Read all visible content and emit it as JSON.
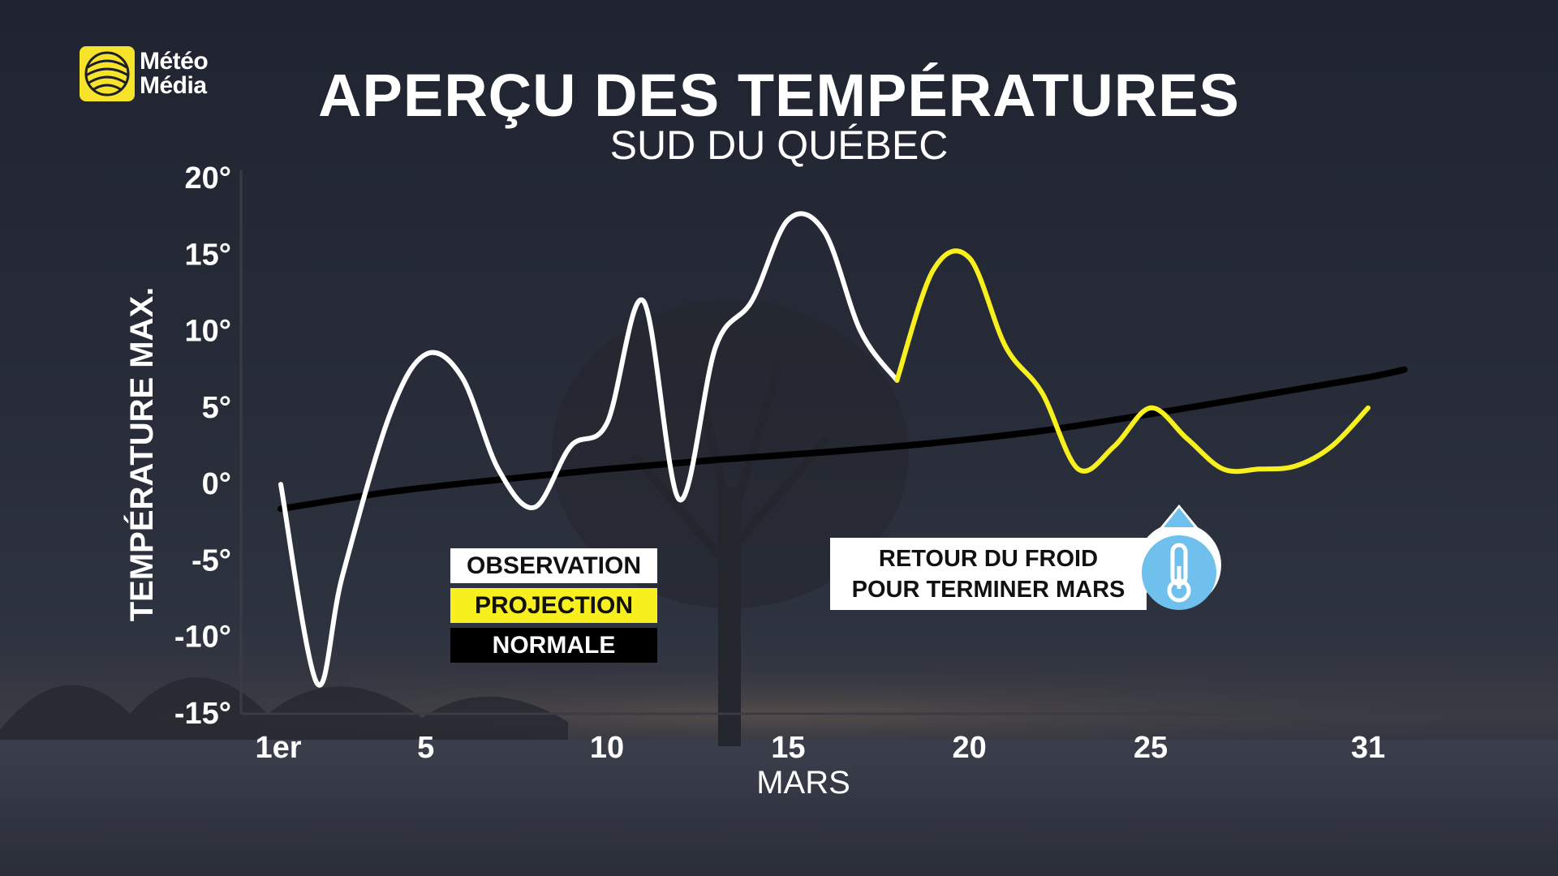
{
  "brand": {
    "line1": "Météo",
    "line2": "Média"
  },
  "title": "APERÇU DES TEMPÉRATURES",
  "subtitle": "SUD DU QUÉBEC",
  "legend": [
    {
      "label": "OBSERVATION",
      "bg": "#ffffff",
      "fg": "#111111"
    },
    {
      "label": "PROJECTION",
      "bg": "#f7ef1e",
      "fg": "#111111"
    },
    {
      "label": "NORMALE",
      "bg": "#000000",
      "fg": "#ffffff"
    }
  ],
  "callout": {
    "line1": "RETOUR DU FROID",
    "line2": "POUR TERMINER MARS",
    "icon": "thermometer-drop-icon"
  },
  "chart_data": {
    "type": "line",
    "title": "APERÇU DES TEMPÉRATURES",
    "subtitle": "SUD DU QUÉBEC",
    "xlabel": "MARS",
    "ylabel": "TEMPÉRATURE MAX.",
    "xlim": [
      1,
      31
    ],
    "ylim": [
      -15,
      20
    ],
    "x_ticks": [
      1,
      5,
      10,
      15,
      20,
      25,
      31
    ],
    "x_tick_labels": [
      "1er",
      "5",
      "10",
      "15",
      "20",
      "25",
      "31"
    ],
    "y_ticks": [
      20,
      15,
      10,
      5,
      0,
      -5,
      -10,
      -15
    ],
    "y_tick_labels": [
      "20°",
      "15°",
      "10°",
      "5°",
      "0°",
      "-5°",
      "-10°",
      "-15°"
    ],
    "series": [
      {
        "name": "OBSERVATION",
        "color": "#ffffff",
        "x": [
          1,
          2,
          2.7,
          4,
          5,
          6,
          7,
          8,
          9,
          10,
          11,
          12,
          13,
          14,
          15,
          16,
          17,
          18
        ],
        "y": [
          0,
          -13,
          -6,
          4.5,
          8.5,
          7,
          1,
          -1.5,
          2.5,
          4,
          12,
          -1,
          9,
          12,
          17.3,
          16.5,
          10,
          6.8
        ]
      },
      {
        "name": "PROJECTION",
        "color": "#f7ef1e",
        "x": [
          18,
          19,
          20,
          21,
          22,
          23,
          24,
          25,
          26,
          27,
          28,
          29,
          30,
          31
        ],
        "y": [
          6.8,
          14,
          14.8,
          9,
          6,
          1,
          2.5,
          5,
          3,
          1,
          1,
          1.2,
          2.5,
          5
        ]
      },
      {
        "name": "NORMALE",
        "color": "#000000",
        "x": [
          1,
          4,
          7,
          10,
          13,
          16,
          19,
          22,
          25,
          28,
          31,
          32
        ],
        "y": [
          -1.6,
          -0.5,
          0.3,
          1.0,
          1.6,
          2.1,
          2.7,
          3.5,
          4.6,
          5.8,
          7.0,
          7.5
        ]
      }
    ]
  }
}
